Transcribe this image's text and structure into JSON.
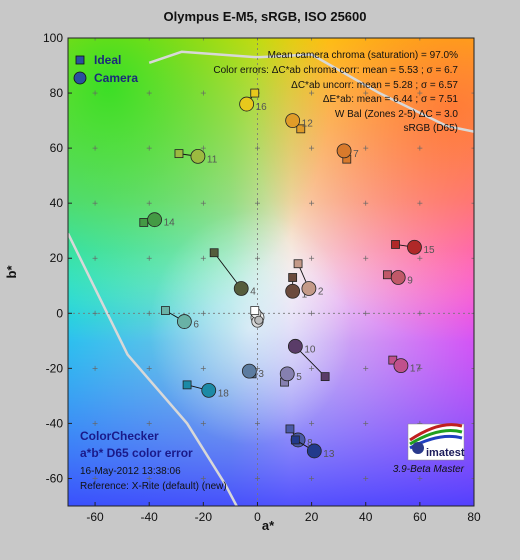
{
  "title": "Olympus E-M5, sRGB, ISO 25600",
  "chart_data": {
    "type": "scatter",
    "xlabel": "a*",
    "ylabel": "b*",
    "xlim": [
      -70,
      80
    ],
    "ylim": [
      -70,
      100
    ],
    "xticks": [
      -60,
      -40,
      -20,
      0,
      20,
      40,
      60,
      80
    ],
    "yticks": [
      -60,
      -40,
      -20,
      0,
      20,
      40,
      60,
      80,
      100
    ],
    "legend": [
      {
        "name": "Ideal",
        "marker": "square",
        "color": "#2a4fa0"
      },
      {
        "name": "Camera",
        "marker": "circle",
        "color": "#2a4fa0"
      }
    ],
    "patches": [
      {
        "id": "1",
        "ideal": [
          13,
          13
        ],
        "camera": [
          13,
          8
        ],
        "color": "#6b4a3c"
      },
      {
        "id": "2",
        "ideal": [
          15,
          18
        ],
        "camera": [
          19,
          9
        ],
        "color": "#c49a88"
      },
      {
        "id": "3",
        "ideal": [
          -2,
          -22
        ],
        "camera": [
          -3,
          -21
        ],
        "color": "#5c7ca0"
      },
      {
        "id": "4",
        "ideal": [
          -16,
          22
        ],
        "camera": [
          -6,
          9
        ],
        "color": "#555d3c"
      },
      {
        "id": "5",
        "ideal": [
          10,
          -25
        ],
        "camera": [
          11,
          -22
        ],
        "color": "#8680b0"
      },
      {
        "id": "6",
        "ideal": [
          -34,
          1
        ],
        "camera": [
          -27,
          -3
        ],
        "color": "#69b2a6"
      },
      {
        "id": "7",
        "ideal": [
          33,
          56
        ],
        "camera": [
          32,
          59
        ],
        "color": "#d87a2c"
      },
      {
        "id": "8",
        "ideal": [
          12,
          -42
        ],
        "camera": [
          15,
          -46
        ],
        "color": "#4a5aa6"
      },
      {
        "id": "9",
        "ideal": [
          48,
          14
        ],
        "camera": [
          52,
          13
        ],
        "color": "#c05868"
      },
      {
        "id": "10",
        "ideal": [
          25,
          -23
        ],
        "camera": [
          14,
          -12
        ],
        "color": "#5a3c68"
      },
      {
        "id": "11",
        "ideal": [
          -29,
          58
        ],
        "camera": [
          -22,
          57
        ],
        "color": "#9cba40"
      },
      {
        "id": "12",
        "ideal": [
          16,
          67
        ],
        "camera": [
          13,
          70
        ],
        "color": "#e09c28"
      },
      {
        "id": "13",
        "ideal": [
          14,
          -46
        ],
        "camera": [
          21,
          -50
        ],
        "color": "#223a8c"
      },
      {
        "id": "14",
        "ideal": [
          -42,
          33
        ],
        "camera": [
          -38,
          34
        ],
        "color": "#449a44"
      },
      {
        "id": "15",
        "ideal": [
          51,
          25
        ],
        "camera": [
          58,
          24
        ],
        "color": "#b02828"
      },
      {
        "id": "16",
        "ideal": [
          -1,
          80
        ],
        "camera": [
          -4,
          76
        ],
        "color": "#e8c81c"
      },
      {
        "id": "17",
        "ideal": [
          50,
          -17
        ],
        "camera": [
          53,
          -19
        ],
        "color": "#c0508c"
      },
      {
        "id": "18",
        "ideal": [
          -26,
          -26
        ],
        "camera": [
          -18,
          -28
        ],
        "color": "#1c8aa6"
      }
    ]
  },
  "stats": [
    "Mean camera chroma (saturation) = 97.0%",
    "Color errors: ΔC*ab chroma corr:  mean = 5.53 ;  σ = 6.7",
    "ΔC*ab uncorr:  mean = 5.28 ;  σ = 6.57",
    "ΔE*ab:  mean = 6.44 ;  σ = 7.51",
    "W Bal (Zones 2-5) ΔC = 3.0",
    "sRGB (D65)"
  ],
  "bottom_left": {
    "heading1": "ColorChecker",
    "heading2": "a*b* D65 color error",
    "date": "16-May-2012 13:38:06",
    "reference": "Reference: X-Rite (default) (new)"
  },
  "logo": {
    "text": "imatest",
    "version": "3.9-Beta  Master"
  }
}
